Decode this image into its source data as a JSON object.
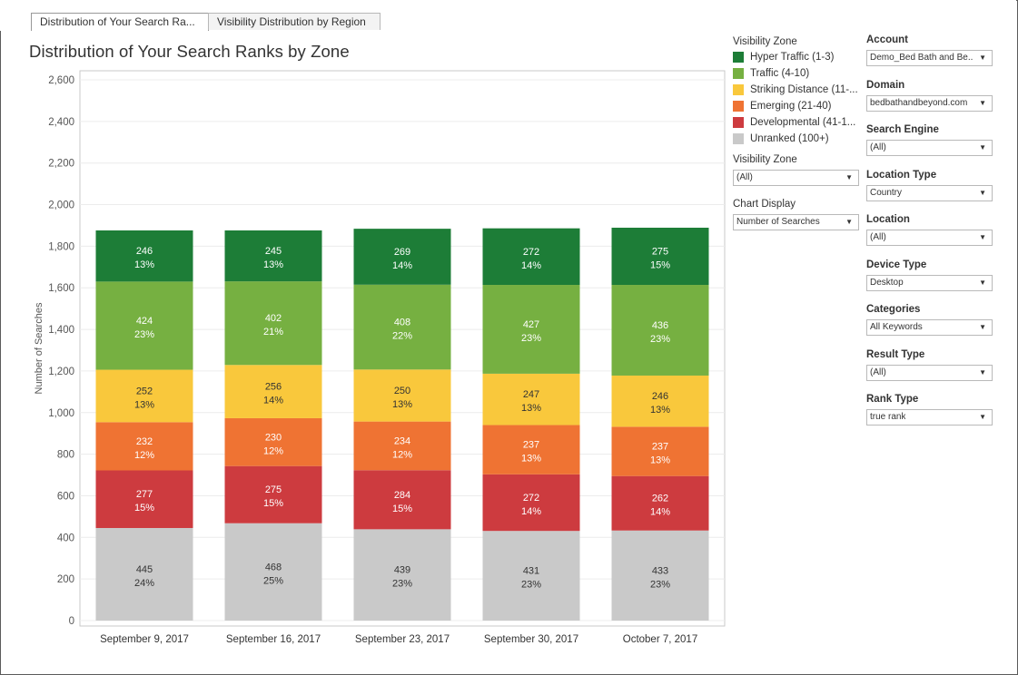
{
  "tabs": [
    {
      "label": "Distribution of Your Search Ra...",
      "active": true
    },
    {
      "label": "Visibility Distribution by Region",
      "active": false
    }
  ],
  "page_title": "Distribution of Your Search Ranks by Zone",
  "legend": {
    "title": "Visibility Zone",
    "items": [
      {
        "label": "Hyper Traffic (1-3)",
        "color": "#1d7d37"
      },
      {
        "label": "Traffic (4-10)",
        "color": "#76b041"
      },
      {
        "label": "Striking Distance (11-...",
        "color": "#f9c83c"
      },
      {
        "label": "Emerging (21-40)",
        "color": "#ef7333"
      },
      {
        "label": "Developmental (41-1...",
        "color": "#cd3b3f"
      },
      {
        "label": "Unranked (100+)",
        "color": "#c9c9c9"
      }
    ]
  },
  "left_filters": [
    {
      "label": "Visibility Zone",
      "value": "(All)"
    },
    {
      "label": "Chart Display",
      "value": "Number of Searches"
    }
  ],
  "right_filters": [
    {
      "label": "Account",
      "value": "Demo_Bed Bath and Be..."
    },
    {
      "label": "Domain",
      "value": "bedbathandbeyond.com"
    },
    {
      "label": "Search Engine",
      "value": "(All)"
    },
    {
      "label": "Location Type",
      "value": "Country"
    },
    {
      "label": "Location",
      "value": "(All)"
    },
    {
      "label": "Device Type",
      "value": "Desktop"
    },
    {
      "label": "Categories",
      "value": "All Keywords"
    },
    {
      "label": "Result Type",
      "value": "(All)"
    },
    {
      "label": "Rank Type",
      "value": "true rank"
    }
  ],
  "icons": {
    "dropdown": "chevron-down-icon"
  },
  "chart_data": {
    "type": "bar",
    "stacked": true,
    "title": "Distribution of Your Search Ranks by Zone",
    "xlabel": "",
    "ylabel": "Number of Searches",
    "ylim": [
      0,
      2600
    ],
    "yticks": [
      "0",
      "200",
      "400",
      "600",
      "800",
      "1,000",
      "1,200",
      "1,400",
      "1,600",
      "1,800",
      "2,000",
      "2,200",
      "2,400",
      "2,600"
    ],
    "ytick_values": [
      0,
      200,
      400,
      600,
      800,
      1000,
      1200,
      1400,
      1600,
      1800,
      2000,
      2200,
      2400,
      2600
    ],
    "grid": true,
    "categories": [
      "September 9, 2017",
      "September 16, 2017",
      "September 23, 2017",
      "September 30, 2017",
      "October 7, 2017"
    ],
    "series": [
      {
        "name": "Unranked (100+)",
        "color": "#c9c9c9",
        "values": [
          445,
          468,
          439,
          431,
          433
        ],
        "percents": [
          "24%",
          "25%",
          "23%",
          "23%",
          "23%"
        ]
      },
      {
        "name": "Developmental (41-100)",
        "color": "#cd3b3f",
        "values": [
          277,
          275,
          284,
          272,
          262
        ],
        "percents": [
          "15%",
          "15%",
          "15%",
          "14%",
          "14%"
        ]
      },
      {
        "name": "Emerging (21-40)",
        "color": "#ef7333",
        "values": [
          232,
          230,
          234,
          237,
          237
        ],
        "percents": [
          "12%",
          "12%",
          "12%",
          "13%",
          "13%"
        ]
      },
      {
        "name": "Striking Distance (11-20)",
        "color": "#f9c83c",
        "values": [
          252,
          256,
          250,
          247,
          246
        ],
        "percents": [
          "13%",
          "14%",
          "13%",
          "13%",
          "13%"
        ]
      },
      {
        "name": "Traffic (4-10)",
        "color": "#76b041",
        "values": [
          424,
          402,
          408,
          427,
          436
        ],
        "percents": [
          "23%",
          "21%",
          "22%",
          "23%",
          "23%"
        ]
      },
      {
        "name": "Hyper Traffic (1-3)",
        "color": "#1d7d37",
        "values": [
          246,
          245,
          269,
          272,
          275
        ],
        "percents": [
          "13%",
          "13%",
          "14%",
          "14%",
          "15%"
        ]
      }
    ]
  }
}
